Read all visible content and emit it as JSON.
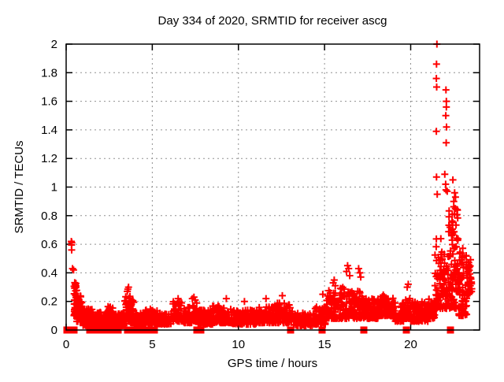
{
  "window": {
    "background": "#ffffff"
  },
  "chart_data": {
    "type": "scatter",
    "title": "Day 334 of 2020, SRMTID for receiver ascg",
    "xlabel": "GPS time / hours",
    "ylabel": "SRMTID / TECUs",
    "xlim": [
      0,
      24
    ],
    "ylim": [
      0,
      2
    ],
    "xticks": [
      0,
      5,
      10,
      15,
      20
    ],
    "yticks": [
      0,
      0.2,
      0.4,
      0.6,
      0.8,
      1,
      1.2,
      1.4,
      1.6,
      1.8,
      2
    ],
    "grid": true,
    "grid_style": "dashed-gray",
    "grid_color": "#909090",
    "legend": "none",
    "marker": "plus",
    "marker_color": "#ff0000",
    "zero_marker": "filled-square",
    "series_name": "SRMTID",
    "points_spec": {
      "comment": "Dense scatter (~2300 pts). segments = [t_start_h, t_end_h, n_points, val_low_TECU, val_high_TECU] envelope bands read from the plot; outliers = explicit [hour, TECU] points; zeros = hours of points at exactly 0 drawn as filled squares on the axis.",
      "seed": 7,
      "low_bias_power": 1.7,
      "segments": [
        [
          0.45,
          0.62,
          38,
          0.1,
          0.34
        ],
        [
          0.62,
          0.92,
          48,
          0.06,
          0.24
        ],
        [
          0.92,
          1.55,
          75,
          0.03,
          0.15
        ],
        [
          1.55,
          2.4,
          95,
          0.02,
          0.13
        ],
        [
          2.4,
          2.72,
          32,
          0.04,
          0.17
        ],
        [
          2.72,
          3.4,
          70,
          0.03,
          0.12
        ],
        [
          3.4,
          3.72,
          38,
          0.06,
          0.26
        ],
        [
          3.72,
          3.98,
          26,
          0.05,
          0.21
        ],
        [
          3.98,
          4.6,
          62,
          0.03,
          0.12
        ],
        [
          4.6,
          5.3,
          62,
          0.04,
          0.15
        ],
        [
          5.3,
          6.2,
          82,
          0.04,
          0.12
        ],
        [
          6.2,
          6.8,
          56,
          0.06,
          0.2
        ],
        [
          6.8,
          7.3,
          46,
          0.05,
          0.16
        ],
        [
          7.3,
          7.62,
          30,
          0.06,
          0.22
        ],
        [
          7.62,
          8.5,
          82,
          0.04,
          0.14
        ],
        [
          8.5,
          9.6,
          96,
          0.05,
          0.17
        ],
        [
          9.6,
          11.2,
          142,
          0.04,
          0.14
        ],
        [
          11.2,
          12.1,
          86,
          0.05,
          0.17
        ],
        [
          12.1,
          13.2,
          100,
          0.05,
          0.19
        ],
        [
          13.2,
          14.3,
          86,
          0.03,
          0.12
        ],
        [
          14.3,
          15.1,
          70,
          0.04,
          0.17
        ],
        [
          15.1,
          15.9,
          72,
          0.08,
          0.28
        ],
        [
          15.9,
          16.6,
          62,
          0.08,
          0.3
        ],
        [
          16.6,
          17.3,
          66,
          0.08,
          0.28
        ],
        [
          17.3,
          18.1,
          82,
          0.08,
          0.22
        ],
        [
          18.1,
          19.0,
          92,
          0.1,
          0.26
        ],
        [
          19.0,
          19.6,
          56,
          0.06,
          0.2
        ],
        [
          19.6,
          20.0,
          42,
          0.08,
          0.25
        ],
        [
          20.0,
          21.0,
          96,
          0.06,
          0.2
        ],
        [
          21.0,
          21.4,
          42,
          0.08,
          0.22
        ],
        [
          21.4,
          21.75,
          48,
          0.15,
          0.65
        ],
        [
          21.75,
          22.2,
          52,
          0.15,
          0.55
        ],
        [
          22.2,
          22.8,
          105,
          0.15,
          0.88
        ],
        [
          22.8,
          23.25,
          72,
          0.1,
          0.6
        ],
        [
          23.25,
          23.55,
          40,
          0.25,
          0.52
        ]
      ],
      "outliers": [
        [
          0.3,
          0.62
        ],
        [
          0.33,
          0.61
        ],
        [
          0.31,
          0.595
        ],
        [
          0.32,
          0.56
        ],
        [
          0.37,
          0.43
        ],
        [
          0.43,
          0.42
        ],
        [
          3.58,
          0.285
        ],
        [
          3.62,
          0.3
        ],
        [
          3.55,
          0.27
        ],
        [
          6.5,
          0.22
        ],
        [
          7.42,
          0.23
        ],
        [
          9.3,
          0.22
        ],
        [
          10.35,
          0.2
        ],
        [
          11.6,
          0.22
        ],
        [
          12.55,
          0.24
        ],
        [
          14.9,
          0.25
        ],
        [
          15.5,
          0.33
        ],
        [
          15.56,
          0.35
        ],
        [
          15.62,
          0.31
        ],
        [
          16.28,
          0.41
        ],
        [
          16.34,
          0.45
        ],
        [
          16.4,
          0.43
        ],
        [
          16.46,
          0.38
        ],
        [
          16.98,
          0.43
        ],
        [
          17.05,
          0.4
        ],
        [
          17.1,
          0.37
        ],
        [
          19.8,
          0.3
        ],
        [
          19.86,
          0.32
        ],
        [
          21.52,
          2.0
        ],
        [
          21.5,
          1.86
        ],
        [
          21.49,
          1.76
        ],
        [
          21.51,
          1.7
        ],
        [
          21.49,
          1.39
        ],
        [
          21.5,
          1.07
        ],
        [
          21.54,
          0.95
        ],
        [
          22.05,
          1.68
        ],
        [
          22.07,
          1.6
        ],
        [
          22.07,
          1.56
        ],
        [
          22.04,
          1.5
        ],
        [
          22.08,
          1.42
        ],
        [
          22.06,
          1.31
        ],
        [
          21.98,
          1.09
        ],
        [
          22.03,
          1.02
        ],
        [
          22.05,
          0.98
        ],
        [
          22.12,
          0.97
        ],
        [
          22.45,
          1.05
        ],
        [
          22.55,
          0.96
        ],
        [
          22.6,
          0.93
        ],
        [
          22.5,
          0.9
        ]
      ],
      "zeros": [
        0.05,
        0.15,
        0.25,
        0.35,
        0.45,
        1.35,
        1.45,
        1.55,
        1.65,
        1.75,
        1.85,
        1.95,
        2.05,
        2.15,
        2.35,
        2.45,
        2.55,
        2.8,
        2.9,
        3.0,
        3.55,
        3.65,
        3.75,
        3.85,
        3.95,
        4.15,
        4.25,
        4.35,
        4.55,
        4.65,
        4.75,
        5.0,
        5.1,
        7.6,
        7.7,
        7.8,
        13.05,
        14.85,
        17.3,
        19.75,
        22.3
      ]
    }
  }
}
